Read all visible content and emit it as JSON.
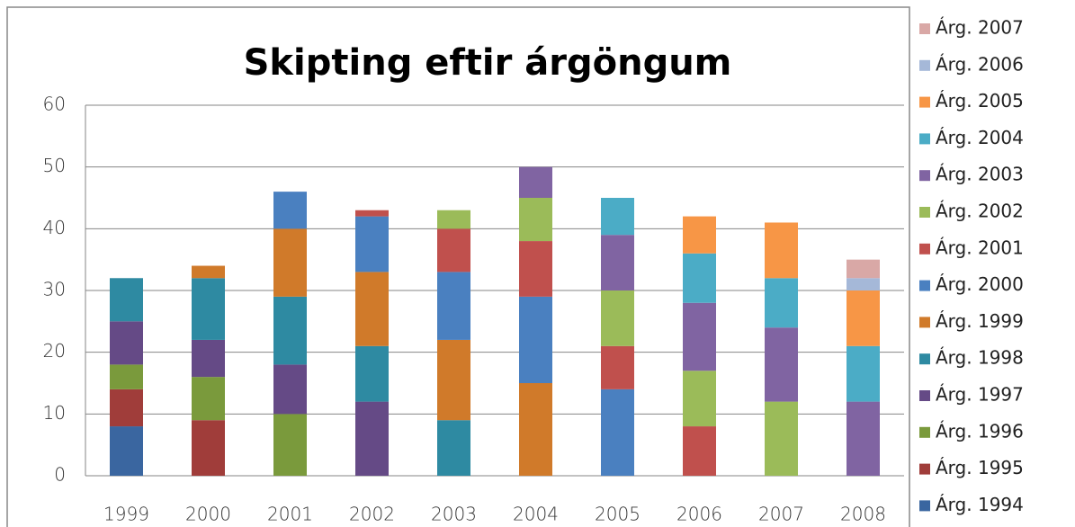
{
  "chart_data": {
    "type": "stacked_bar",
    "title": "Skipting eftir árgöngum",
    "categories": [
      "1999",
      "2000",
      "2001",
      "2002",
      "2003",
      "2004",
      "2005",
      "2006",
      "2007",
      "2008"
    ],
    "series": [
      {
        "name": "Árg. 1994",
        "color": "#3a66a0",
        "values": [
          8,
          null,
          null,
          null,
          null,
          null,
          null,
          null,
          null,
          null
        ]
      },
      {
        "name": "Árg. 1995",
        "color": "#a03d3a",
        "values": [
          6,
          9,
          null,
          null,
          null,
          null,
          null,
          null,
          null,
          null
        ]
      },
      {
        "name": "Árg. 1996",
        "color": "#7a9a3c",
        "values": [
          4,
          7,
          10,
          null,
          null,
          null,
          null,
          null,
          null,
          null
        ]
      },
      {
        "name": "Árg. 1997",
        "color": "#654a86",
        "values": [
          7,
          6,
          8,
          12,
          null,
          null,
          null,
          null,
          null,
          null
        ]
      },
      {
        "name": "Árg. 1998",
        "color": "#2e8aa2",
        "values": [
          7,
          10,
          11,
          9,
          9,
          null,
          null,
          null,
          null,
          null
        ]
      },
      {
        "name": "Árg. 1999",
        "color": "#d07a2a",
        "values": [
          null,
          2,
          11,
          12,
          13,
          15,
          null,
          null,
          null,
          null
        ]
      },
      {
        "name": "Árg. 2000",
        "color": "#4a80c0",
        "values": [
          null,
          null,
          6,
          9,
          11,
          14,
          14,
          null,
          null,
          null
        ]
      },
      {
        "name": "Árg. 2001",
        "color": "#c0504d",
        "values": [
          null,
          null,
          null,
          1,
          7,
          9,
          7,
          8,
          null,
          null
        ]
      },
      {
        "name": "Árg. 2002",
        "color": "#9bbb59",
        "values": [
          null,
          null,
          null,
          null,
          3,
          7,
          9,
          9,
          12,
          null
        ]
      },
      {
        "name": "Árg. 2003",
        "color": "#8064a2",
        "values": [
          null,
          null,
          null,
          null,
          null,
          5,
          9,
          11,
          12,
          12
        ]
      },
      {
        "name": "Árg. 2004",
        "color": "#4bacc6",
        "values": [
          null,
          null,
          null,
          null,
          null,
          null,
          6,
          8,
          8,
          9
        ]
      },
      {
        "name": "Árg. 2005",
        "color": "#f79646",
        "values": [
          null,
          null,
          null,
          null,
          null,
          null,
          null,
          6,
          9,
          9
        ]
      },
      {
        "name": "Árg. 2006",
        "color": "#a5b8d8",
        "values": [
          null,
          null,
          null,
          null,
          null,
          null,
          null,
          null,
          null,
          2
        ]
      },
      {
        "name": "Árg. 2007",
        "color": "#d9a8a6",
        "values": [
          null,
          null,
          null,
          null,
          null,
          null,
          null,
          null,
          null,
          3
        ]
      }
    ],
    "ylim": [
      0,
      60
    ],
    "yticks": [
      0,
      10,
      20,
      30,
      40,
      50,
      60
    ],
    "grid": true,
    "legend": "right"
  }
}
